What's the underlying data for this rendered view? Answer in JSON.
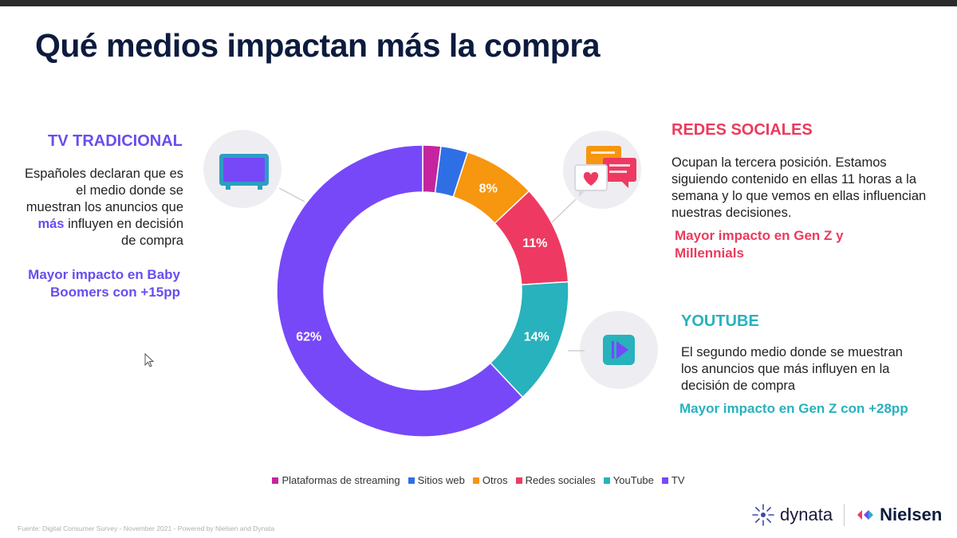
{
  "slide": {
    "title": "Qué medios impactan más la compra"
  },
  "tv": {
    "heading": "TV TRADICIONAL",
    "body_part1": "Españoles declaran que es el medio donde se muestran los anuncios que ",
    "body_highlight": "más",
    "body_part2": " influyen en decisión de compra",
    "impact": "Mayor impacto en Baby Boomers con +15pp",
    "icon": "tv-icon"
  },
  "redes": {
    "heading": "REDES SOCIALES",
    "body": "Ocupan la tercera posición. Estamos siguiendo contenido en ellas 11 horas a la semana y lo que vemos en ellas influencian nuestras decisiones.",
    "impact": "Mayor impacto en Gen Z y Millennials",
    "icon": "chat-heart-icon"
  },
  "youtube": {
    "heading": "YOUTUBE",
    "body": "El segundo medio donde se muestran los anuncios que más influyen en la decisión de compra",
    "impact": "Mayor impacto en Gen Z con +28pp",
    "icon": "play-icon"
  },
  "chart_data": {
    "type": "pie",
    "donut": true,
    "categories": [
      "Plataformas de streaming",
      "Sitios web",
      "Otros",
      "Redes sociales",
      "YouTube",
      "TV"
    ],
    "values": [
      2,
      3,
      8,
      11,
      14,
      62
    ],
    "data_labels": [
      "",
      "",
      "8%",
      "11%",
      "14%",
      "62%"
    ],
    "colors": [
      "#c4259e",
      "#2f6fe6",
      "#f7960f",
      "#ee3a62",
      "#27b2bd",
      "#7748f8"
    ],
    "legend_position": "bottom"
  },
  "footer": {
    "source": "Fuente: Digital Consumer Survey - November 2021 - Powered by Nielsen and Dynata",
    "brand1": "dynata",
    "brand2": "Nielsen"
  }
}
